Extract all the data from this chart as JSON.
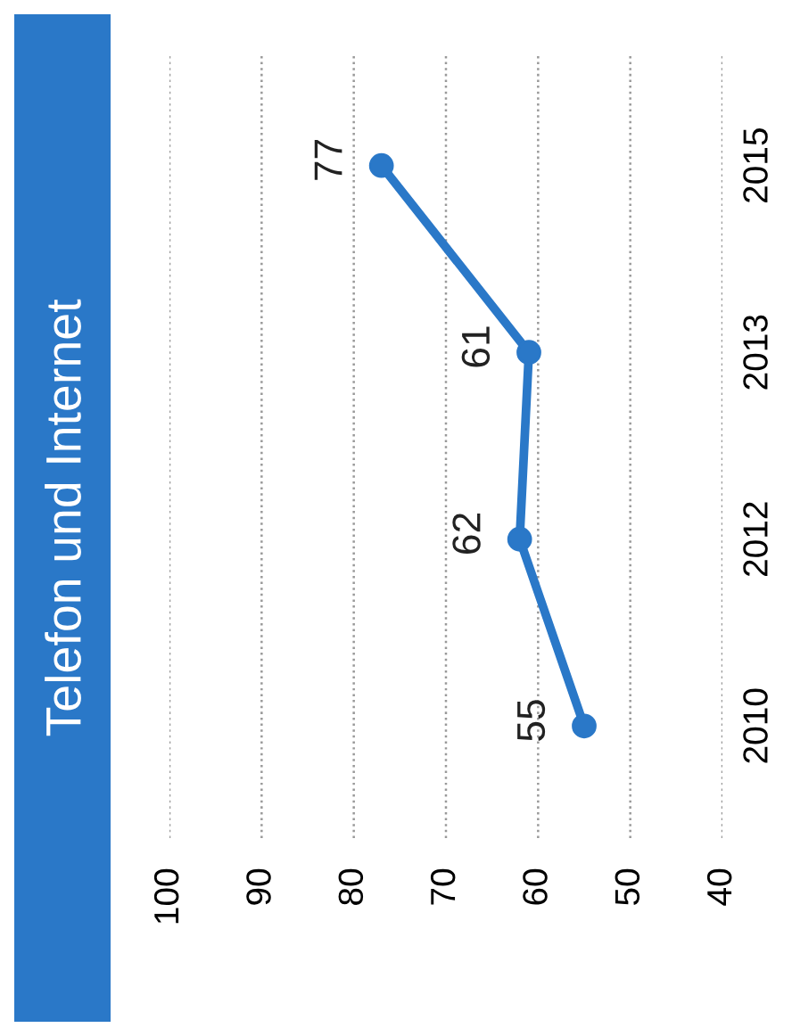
{
  "chart_data": {
    "type": "line",
    "title": "Telefon und Internet",
    "categories": [
      "2015",
      "2013",
      "2012",
      "2010"
    ],
    "series": [
      {
        "color": "#2a78c8",
        "values": [
          77,
          61,
          62,
          55
        ]
      }
    ],
    "orientation": "horizontal",
    "xlim": [
      100,
      40
    ],
    "xticks": [
      100,
      90,
      80,
      70,
      60,
      50,
      40
    ],
    "grid": "x",
    "marker": "circle",
    "line_style": "solid",
    "data_labels": true
  }
}
